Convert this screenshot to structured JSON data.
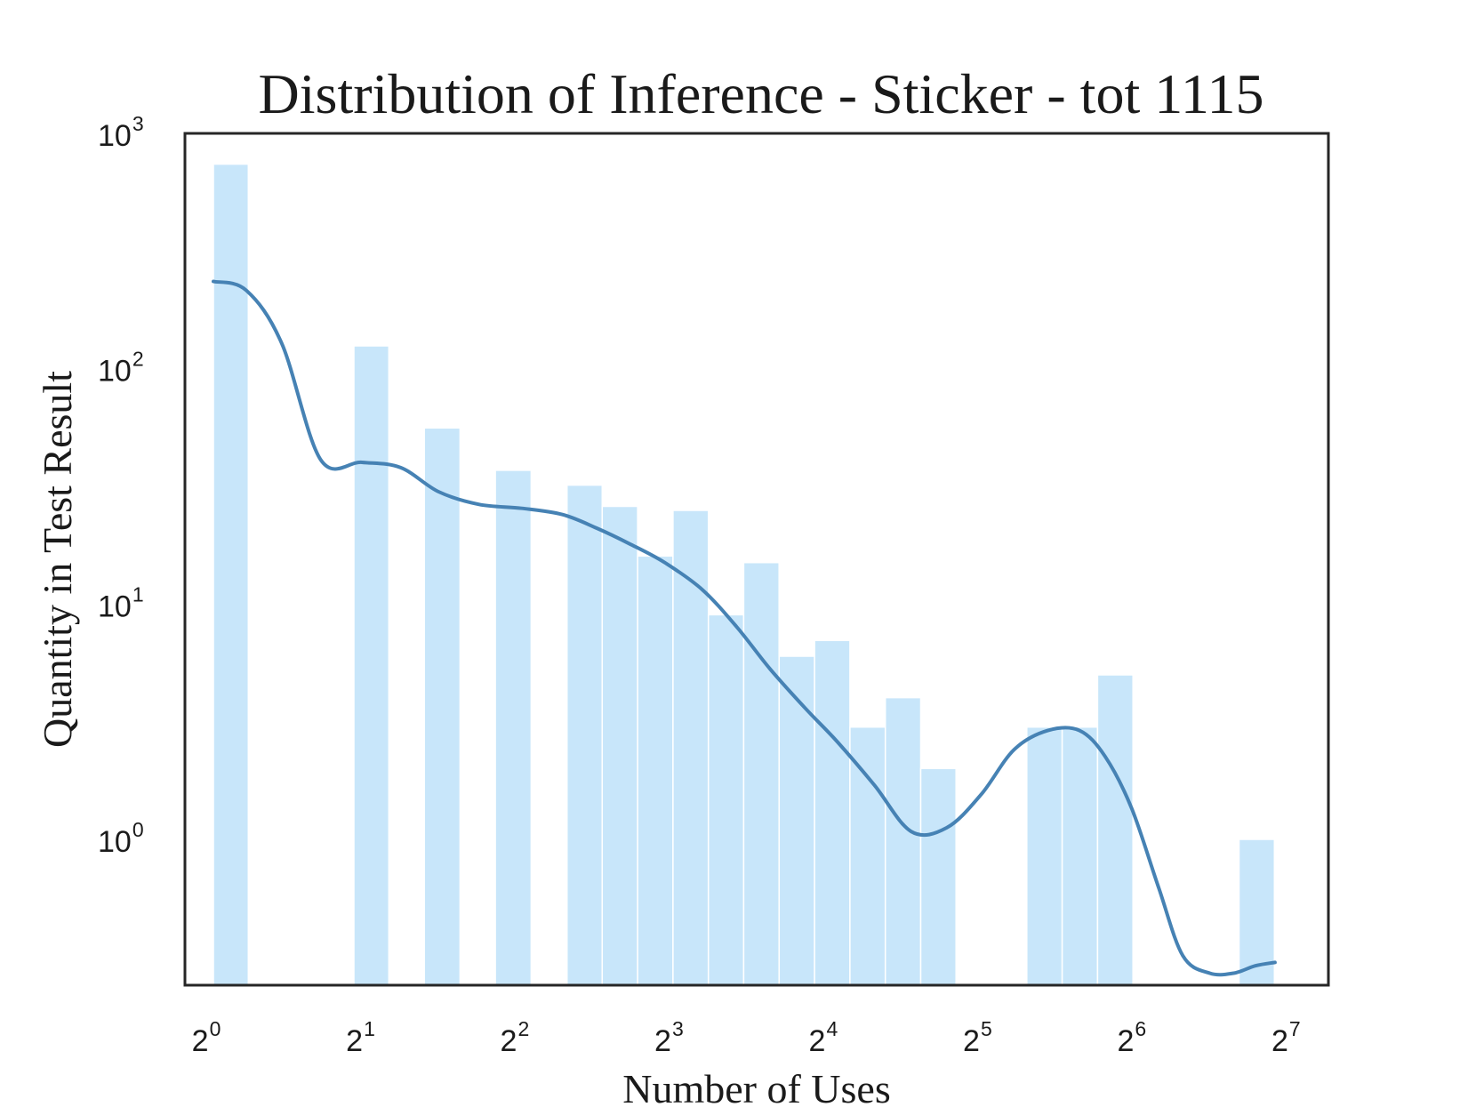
{
  "chart_data": {
    "type": "bar",
    "title": "Distribution of Inference - Sticker - tot 1115",
    "xlabel": "Number of Uses",
    "ylabel": "Quantity in Test Result",
    "x_scale": "log2",
    "y_scale": "log10",
    "xlim": [
      0.88,
      150
    ],
    "ylim": [
      0.24,
      1000
    ],
    "grid": false,
    "x_ticks": [
      {
        "base": "2",
        "exp": "0",
        "value": 1
      },
      {
        "base": "2",
        "exp": "1",
        "value": 2
      },
      {
        "base": "2",
        "exp": "2",
        "value": 4
      },
      {
        "base": "2",
        "exp": "3",
        "value": 8
      },
      {
        "base": "2",
        "exp": "4",
        "value": 16
      },
      {
        "base": "2",
        "exp": "5",
        "value": 32
      },
      {
        "base": "2",
        "exp": "6",
        "value": 64
      },
      {
        "base": "2",
        "exp": "7",
        "value": 128
      }
    ],
    "y_ticks": [
      {
        "base": "10",
        "exp": "0",
        "value": 1
      },
      {
        "base": "10",
        "exp": "1",
        "value": 10
      },
      {
        "base": "10",
        "exp": "2",
        "value": 100
      },
      {
        "base": "10",
        "exp": "3",
        "value": 1000
      }
    ],
    "bars": [
      {
        "x0": 1.0,
        "x1": 1.17,
        "count": 740
      },
      {
        "x0": 1.88,
        "x1": 2.2,
        "count": 125
      },
      {
        "x0": 2.58,
        "x1": 3.03,
        "count": 56
      },
      {
        "x0": 3.55,
        "x1": 4.17,
        "count": 37
      },
      {
        "x0": 4.9,
        "x1": 5.74,
        "count": 32
      },
      {
        "x0": 5.74,
        "x1": 6.73,
        "count": 26
      },
      {
        "x0": 6.73,
        "x1": 7.89,
        "count": 16
      },
      {
        "x0": 7.89,
        "x1": 9.25,
        "count": 25
      },
      {
        "x0": 9.25,
        "x1": 10.84,
        "count": 9
      },
      {
        "x0": 10.84,
        "x1": 12.71,
        "count": 15
      },
      {
        "x0": 12.71,
        "x1": 14.9,
        "count": 6
      },
      {
        "x0": 14.9,
        "x1": 17.47,
        "count": 7
      },
      {
        "x0": 17.47,
        "x1": 20.48,
        "count": 3
      },
      {
        "x0": 20.48,
        "x1": 24.01,
        "count": 4
      },
      {
        "x0": 24.01,
        "x1": 28.14,
        "count": 2
      },
      {
        "x0": 38.68,
        "x1": 45.35,
        "count": 3
      },
      {
        "x0": 45.35,
        "x1": 53.16,
        "count": 3
      },
      {
        "x0": 53.16,
        "x1": 62.32,
        "count": 5
      },
      {
        "x0": 100.4,
        "x1": 117.7,
        "count": 1
      }
    ],
    "kde": {
      "x": [
        1.0,
        1.16,
        1.36,
        1.62,
        1.95,
        2.32,
        2.75,
        3.3,
        4.0,
        4.8,
        5.6,
        6.5,
        7.6,
        9.0,
        10.5,
        12.2,
        14.3,
        16.5,
        19.5,
        23.0,
        27.0,
        31.5,
        36.5,
        42.5,
        49.0,
        55.0,
        62.0,
        70.0,
        78.0,
        88.0,
        98.0,
        108.0,
        118.0
      ],
      "y": [
        235,
        215,
        128,
        41,
        40,
        38,
        30,
        26.5,
        25.5,
        24,
        21,
        18,
        15,
        11.5,
        8,
        5.3,
        3.6,
        2.6,
        1.7,
        1.08,
        1.12,
        1.55,
        2.4,
        2.9,
        2.9,
        2.25,
        1.35,
        0.62,
        0.32,
        0.27,
        0.27,
        0.29,
        0.3
      ]
    },
    "colors": {
      "bar_fill": "#c8e6fa",
      "kde_line": "#4682b4",
      "axes": "#262626"
    }
  }
}
